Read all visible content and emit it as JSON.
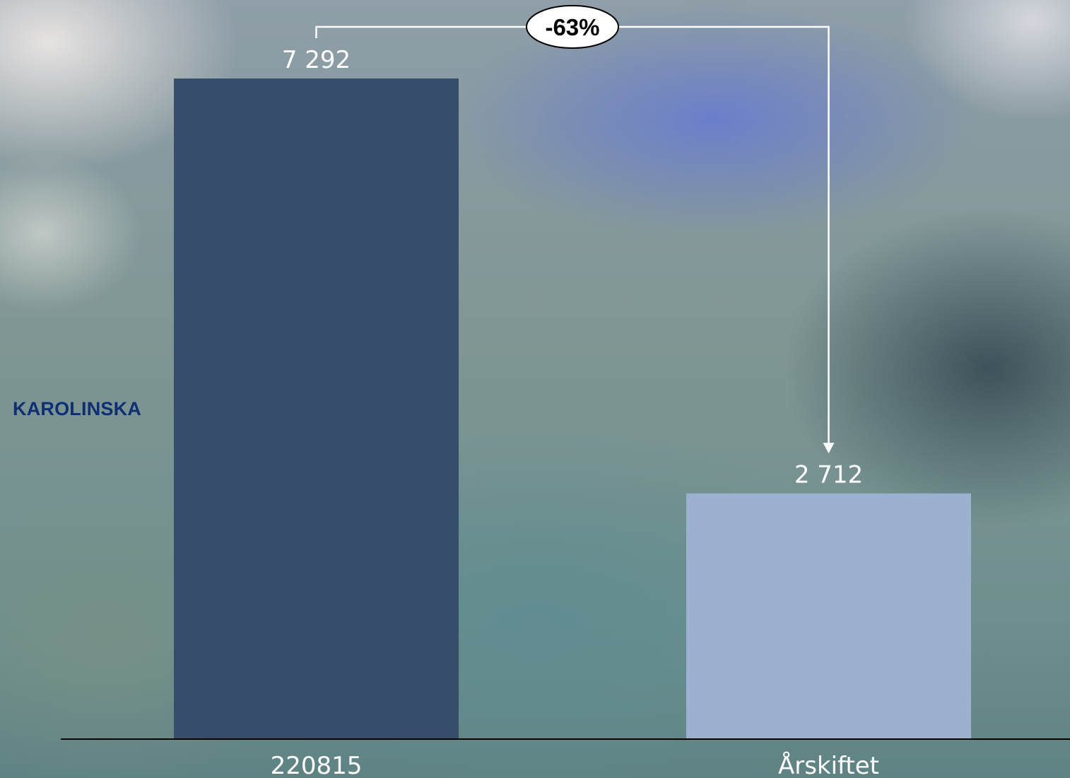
{
  "side_label": "KAROLINSKA",
  "change_label": "-63%",
  "colors": {
    "bar_1": "#374d6c",
    "bar_2": "#9cb0cf",
    "axis": "#000000",
    "text": "#ffffff",
    "side_label": "#0f2f73"
  },
  "chart_data": {
    "type": "bar",
    "categories": [
      "220815",
      "Årskiftet"
    ],
    "values": [
      7292,
      2712
    ],
    "value_labels": [
      "7 292",
      "2 712"
    ],
    "title": "",
    "xlabel": "",
    "ylabel": "",
    "ylim": [
      0,
      7292
    ],
    "grid": false,
    "legend": "none"
  }
}
